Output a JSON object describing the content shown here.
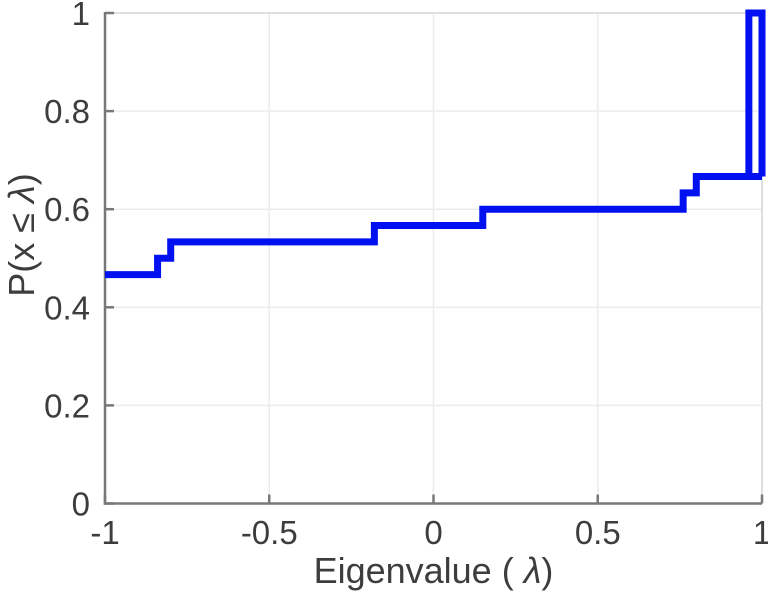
{
  "figure": {
    "xlabel": {
      "prefix": "Eigenvalue ( ",
      "lambda": "λ",
      "suffix": ")"
    },
    "ylabel": {
      "prefix": "P(x ≤ ",
      "lambda": "λ",
      "suffix": ")"
    }
  },
  "chart_data": {
    "type": "line",
    "subtype": "empirical-cdf-staircase",
    "title": "",
    "xlabel": "Eigenvalue ( λ)",
    "ylabel": "P(x ≤ λ)",
    "xlim": [
      -1,
      1
    ],
    "ylim": [
      0,
      1
    ],
    "xticks": [
      -1,
      -0.5,
      0,
      0.5,
      1
    ],
    "xtick_labels": [
      "-1",
      "-0.5",
      "0",
      "0.5",
      "1"
    ],
    "yticks": [
      0,
      0.2,
      0.4,
      0.6,
      0.8,
      1
    ],
    "ytick_labels": [
      "0",
      "0.2",
      "0.4",
      "0.6",
      "0.8",
      "1"
    ],
    "grid": true,
    "legend": null,
    "line_color": "#0010f0",
    "line_width": 7,
    "axis_color": "#787878",
    "box_color": "#d9d9d9",
    "grid_color": "#ececec",
    "tick_label_color": "#3d3d3d",
    "steps": [
      {
        "from": -1.0,
        "to": -0.84,
        "p": 0.4667
      },
      {
        "from": -0.84,
        "to": -0.8,
        "p": 0.5
      },
      {
        "from": -0.8,
        "to": -0.18,
        "p": 0.5333
      },
      {
        "from": -0.18,
        "to": 0.15,
        "p": 0.5667
      },
      {
        "from": 0.15,
        "to": 0.76,
        "p": 0.6
      },
      {
        "from": 0.76,
        "to": 0.8,
        "p": 0.6333
      },
      {
        "from": 0.8,
        "to": 1.0,
        "p": 0.6667
      }
    ],
    "spike": {
      "from": 0.96,
      "to": 1.0,
      "top": 1.0,
      "base": 0.6667
    },
    "jump_points": [
      {
        "lambda": -0.84,
        "cdf": 0.5
      },
      {
        "lambda": -0.8,
        "cdf": 0.5333
      },
      {
        "lambda": -0.18,
        "cdf": 0.5667
      },
      {
        "lambda": 0.15,
        "cdf": 0.6
      },
      {
        "lambda": 0.76,
        "cdf": 0.6333
      },
      {
        "lambda": 0.8,
        "cdf": 0.6667
      },
      {
        "lambda": 0.96,
        "cdf": 1.0
      }
    ]
  }
}
